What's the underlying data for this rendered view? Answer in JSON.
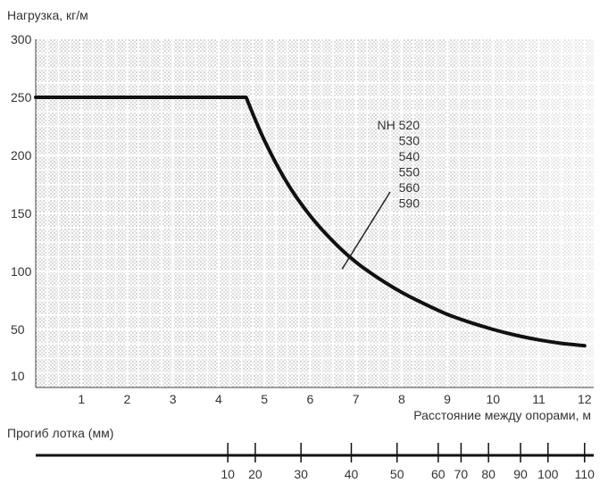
{
  "chart_data": {
    "type": "line",
    "title": "",
    "ylabel": "Нагрузка, кг/м",
    "xlabel": "Расстояние между опорами, м",
    "xlim": [
      0,
      12.2
    ],
    "ylim": [
      0,
      300
    ],
    "grid": true,
    "x_ticks": [
      1,
      2,
      3,
      4,
      5,
      6,
      7,
      8,
      9,
      10,
      11,
      12
    ],
    "x_tick_labels": [
      "1",
      "2",
      "3",
      "4",
      "5",
      "6",
      "7",
      "8",
      "9",
      "10",
      "11",
      "12"
    ],
    "y_ticks": [
      10,
      50,
      100,
      150,
      200,
      250,
      300
    ],
    "y_tick_labels": [
      "10",
      "50",
      "100",
      "150",
      "200",
      "250",
      "300"
    ],
    "series": [
      {
        "name": "",
        "color": "#111111",
        "points": [
          [
            0.0,
            250
          ],
          [
            4.6,
            250
          ],
          [
            5.0,
            213
          ],
          [
            5.5,
            176
          ],
          [
            6.0,
            148
          ],
          [
            6.5,
            126
          ],
          [
            7.0,
            108
          ],
          [
            7.5,
            94
          ],
          [
            8.0,
            82
          ],
          [
            8.5,
            72
          ],
          [
            9.0,
            63
          ],
          [
            9.5,
            56
          ],
          [
            10.0,
            50
          ],
          [
            10.5,
            45
          ],
          [
            11.0,
            41
          ],
          [
            11.5,
            38
          ],
          [
            12.0,
            36
          ]
        ]
      }
    ],
    "annotation": {
      "lines": [
        "NH 520",
        "530",
        "540",
        "550",
        "560",
        "590"
      ],
      "pointer_to": [
        6.7,
        102
      ]
    },
    "deflection_scale": {
      "label": "Прогиб лотка (мм)",
      "ticks": [
        {
          "label": "10",
          "at_x": 4.2
        },
        {
          "label": "20",
          "at_x": 4.8
        },
        {
          "label": "30",
          "at_x": 5.8
        },
        {
          "label": "40",
          "at_x": 6.9
        },
        {
          "label": "50",
          "at_x": 7.9
        },
        {
          "label": "60",
          "at_x": 8.8
        },
        {
          "label": "70",
          "at_x": 9.3
        },
        {
          "label": "80",
          "at_x": 9.9
        },
        {
          "label": "90",
          "at_x": 10.6
        },
        {
          "label": "100",
          "at_x": 11.2
        },
        {
          "label": "110",
          "at_x": 12.0
        }
      ]
    }
  }
}
